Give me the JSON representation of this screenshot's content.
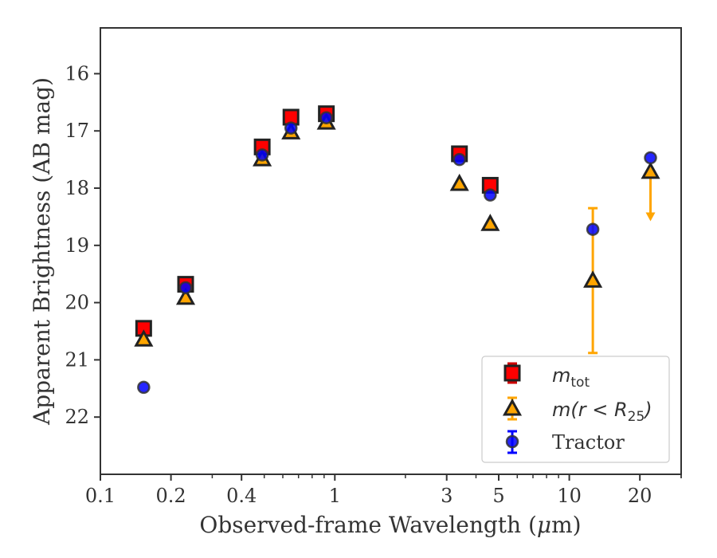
{
  "chart_data": {
    "type": "scatter",
    "xlabel_pre": "Observed-frame Wavelength (",
    "xlabel_mu": "μ",
    "xlabel_post": "m)",
    "ylabel": "Apparent Brightness (AB mag)",
    "x_scale": "log",
    "xlim": [
      0.1,
      30
    ],
    "ylim": [
      23.0,
      15.2
    ],
    "y_inverted": true,
    "grid": false,
    "legend_position": "lower-right",
    "x_ticks": [
      {
        "value": 0.1,
        "label": "0.1"
      },
      {
        "value": 0.2,
        "label": "0.2"
      },
      {
        "value": 0.4,
        "label": "0.4"
      },
      {
        "value": 1,
        "label": "1"
      },
      {
        "value": 3,
        "label": "3"
      },
      {
        "value": 5,
        "label": "5"
      },
      {
        "value": 10,
        "label": "10"
      },
      {
        "value": 20,
        "label": "20"
      }
    ],
    "y_ticks": [
      {
        "value": 16,
        "label": "16"
      },
      {
        "value": 17,
        "label": "17"
      },
      {
        "value": 18,
        "label": "18"
      },
      {
        "value": 19,
        "label": "19"
      },
      {
        "value": 20,
        "label": "20"
      },
      {
        "value": 21,
        "label": "21"
      },
      {
        "value": 22,
        "label": "22"
      }
    ],
    "series": [
      {
        "name": "m_tot",
        "marker": "square",
        "fill": "#ff0000",
        "error_color": "#cc0000",
        "points": [
          {
            "x": 0.153,
            "y": 20.45
          },
          {
            "x": 0.231,
            "y": 19.68
          },
          {
            "x": 0.49,
            "y": 17.28
          },
          {
            "x": 0.65,
            "y": 16.76
          },
          {
            "x": 0.92,
            "y": 16.7
          },
          {
            "x": 3.4,
            "y": 17.4
          },
          {
            "x": 4.6,
            "y": 17.95
          }
        ]
      },
      {
        "name": "m(r<R25)",
        "marker": "triangle",
        "fill": "#ffa500",
        "error_color": "#ffa500",
        "points": [
          {
            "x": 0.153,
            "y": 20.65
          },
          {
            "x": 0.231,
            "y": 19.92
          },
          {
            "x": 0.49,
            "y": 17.5
          },
          {
            "x": 0.65,
            "y": 17.03
          },
          {
            "x": 0.92,
            "y": 16.86
          },
          {
            "x": 3.4,
            "y": 17.93
          },
          {
            "x": 4.6,
            "y": 18.63
          },
          {
            "x": 12.6,
            "y": 19.62,
            "yerr_low": 18.35,
            "yerr_high": 20.88
          },
          {
            "x": 22.2,
            "y": 17.72,
            "upper_limit_to": 18.55
          }
        ]
      },
      {
        "name": "Tractor",
        "marker": "circle",
        "fill": "#0000ff",
        "error_color": "#0000ff",
        "points": [
          {
            "x": 0.153,
            "y": 21.48
          },
          {
            "x": 0.231,
            "y": 19.74
          },
          {
            "x": 0.49,
            "y": 17.42
          },
          {
            "x": 0.65,
            "y": 16.95
          },
          {
            "x": 0.92,
            "y": 16.77
          },
          {
            "x": 3.4,
            "y": 17.5
          },
          {
            "x": 4.6,
            "y": 18.12
          },
          {
            "x": 12.6,
            "y": 18.72
          },
          {
            "x": 22.2,
            "y": 17.47
          }
        ]
      }
    ]
  },
  "legend": {
    "m_tot_base": "m",
    "m_tot_sub": "tot",
    "m_r_pre": "m(r < R",
    "m_r_sub": "25",
    "m_r_post": ")",
    "tractor": "Tractor"
  }
}
